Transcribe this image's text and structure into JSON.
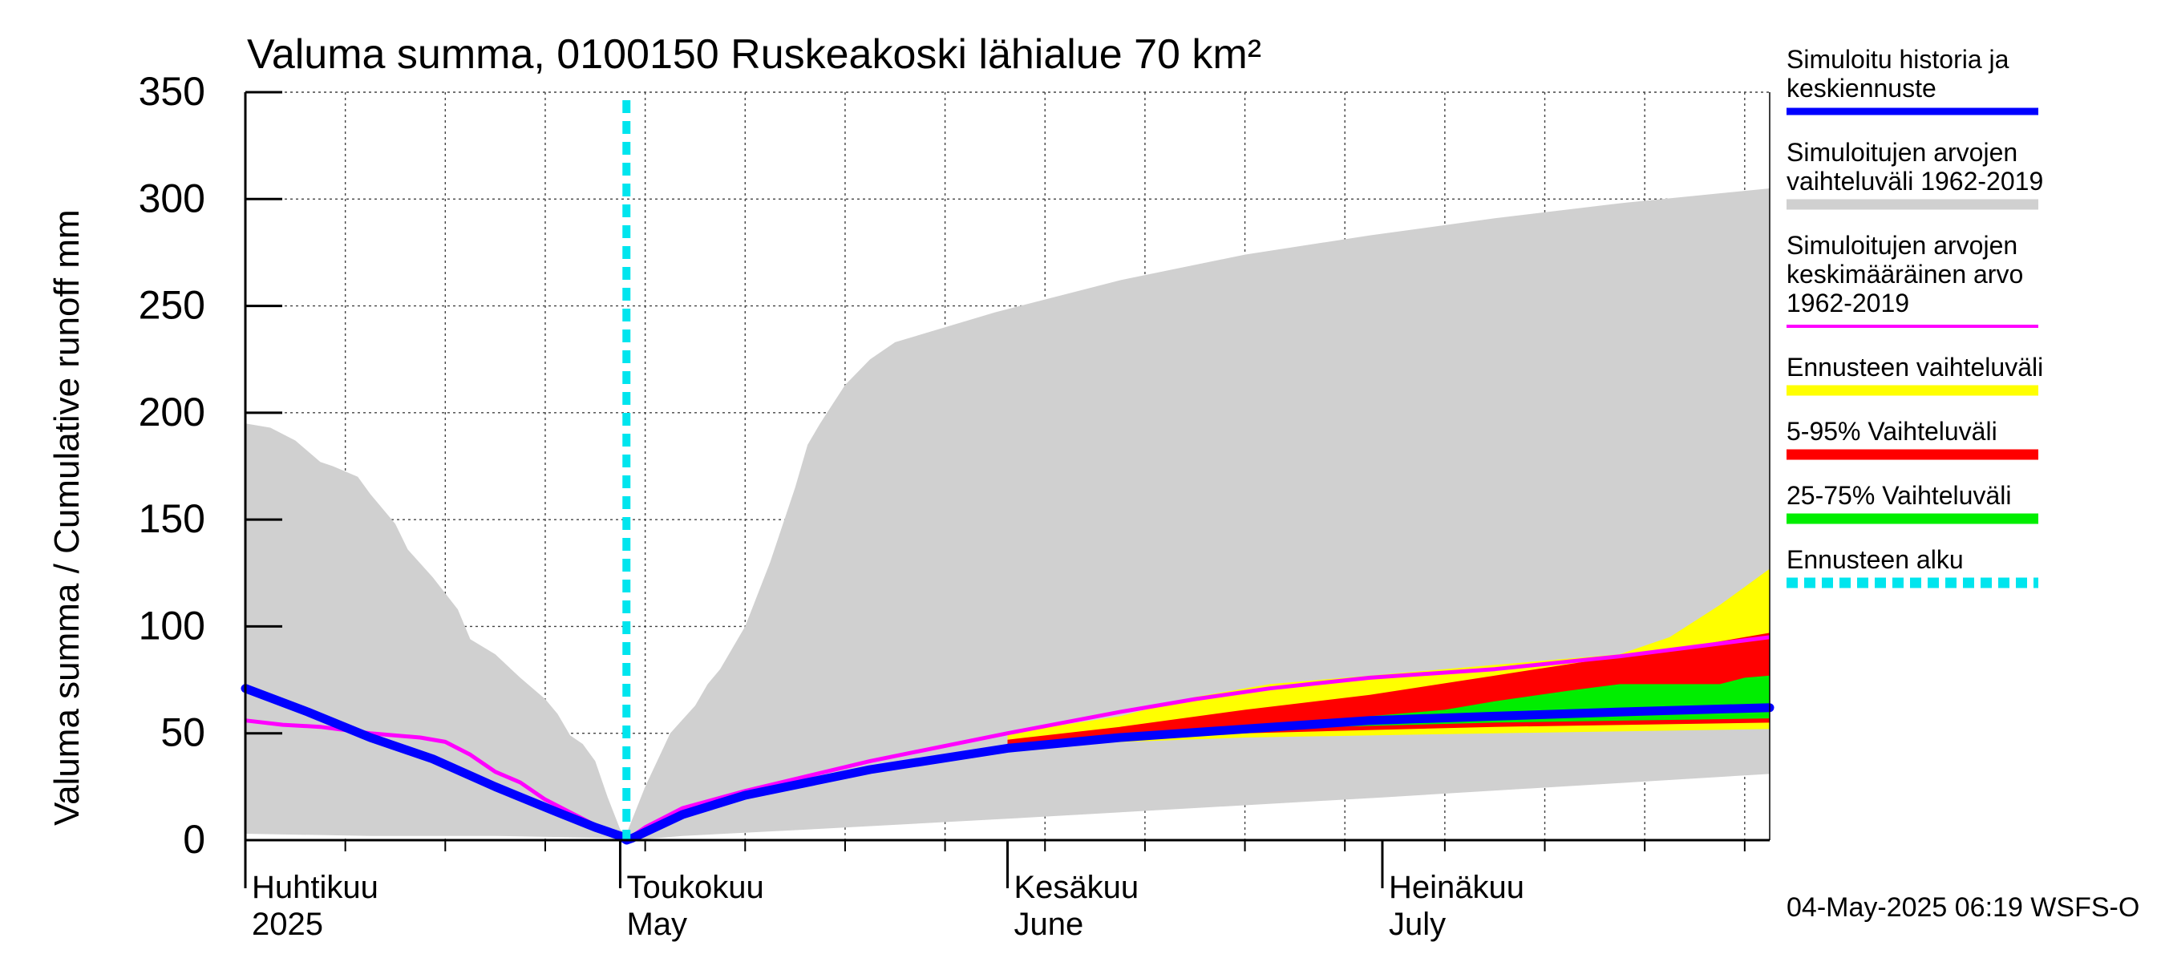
{
  "chart_data": {
    "type": "area",
    "title": "Valuma summa, 0100150 Ruskeakoski lähialue 70 km²",
    "ylabel": "Valuma summa / Cumulative runoff    mm",
    "xlabel": "",
    "ylim": [
      0,
      350
    ],
    "yticks": [
      0,
      50,
      100,
      150,
      200,
      250,
      300,
      350
    ],
    "grid": true,
    "x_unit": "day index from 1 April 2025",
    "xlim": [
      0,
      122
    ],
    "month_labels": [
      {
        "fi": "Huhtikuu",
        "en": "2025",
        "day": 0
      },
      {
        "fi": "Toukokuu",
        "en": "May",
        "day": 30
      },
      {
        "fi": "Kesäkuu",
        "en": "June",
        "day": 61
      },
      {
        "fi": "Heinäkuu",
        "en": "July",
        "day": 91
      }
    ],
    "forecast_start_day": 30.5,
    "timestamp": "04-May-2025 06:19 WSFS-O",
    "legend": [
      {
        "label_lines": [
          "Simuloitu historia ja",
          "keskiennuste"
        ],
        "color": "#0000ff",
        "style": "line"
      },
      {
        "label_lines": [
          "Simuloitujen arvojen",
          "vaihteluväli 1962-2019"
        ],
        "color": "#d0d0d0",
        "style": "thick"
      },
      {
        "label_lines": [
          "Simuloitujen arvojen",
          "keskimääräinen arvo",
          "   1962-2019"
        ],
        "color": "#ff00ff",
        "style": "thin"
      },
      {
        "label_lines": [
          "Ennusteen vaihteluväli"
        ],
        "color": "#ffff00",
        "style": "thick"
      },
      {
        "label_lines": [
          "5-95% Vaihteluväli"
        ],
        "color": "#ff0000",
        "style": "thick"
      },
      {
        "label_lines": [
          "25-75% Vaihteluväli"
        ],
        "color": "#00ee00",
        "style": "thick"
      },
      {
        "label_lines": [
          "Ennusteen alku"
        ],
        "color": "#00e5ee",
        "style": "dashed"
      }
    ],
    "series": [
      {
        "name": "Simuloitujen arvojen vaihteluväli 1962-2019 (upper)",
        "color": "#d0d0d0",
        "x": [
          0,
          2,
          4,
          6,
          7,
          9,
          10,
          12,
          13,
          15,
          17,
          18,
          20,
          22,
          24,
          25,
          26,
          27,
          28,
          29,
          30,
          30.5,
          32,
          34,
          36,
          37,
          38,
          40,
          42,
          44,
          45,
          46,
          48,
          50,
          52,
          60,
          70,
          80,
          90,
          100,
          110,
          122
        ],
        "y": [
          195,
          193,
          187,
          177,
          175,
          170,
          162,
          148,
          136,
          123,
          108,
          94,
          87,
          76,
          66,
          59,
          49,
          45,
          37,
          20,
          5,
          3,
          25,
          50,
          63,
          73,
          80,
          100,
          130,
          165,
          185,
          195,
          213,
          225,
          233,
          247,
          262,
          274,
          283,
          291,
          298,
          305
        ]
      },
      {
        "name": "Simuloitujen arvojen vaihteluväli 1962-2019 (lower)",
        "color": "#d0d0d0",
        "x": [
          0,
          10,
          20,
          29,
          30,
          30.5,
          31,
          35,
          45,
          61,
          91,
          122
        ],
        "y": [
          3,
          2,
          2,
          1,
          0,
          0,
          0,
          2,
          5,
          10,
          20,
          31
        ]
      },
      {
        "name": "Ennusteen vaihteluväli (upper)",
        "color": "#ffff00",
        "x": [
          61,
          70,
          76,
          82,
          90,
          100,
          110,
          114,
          118,
          122
        ],
        "y": [
          50,
          58,
          67,
          73,
          77,
          82,
          87,
          95,
          110,
          127
        ]
      },
      {
        "name": "Ennusteen vaihteluväli (lower)",
        "color": "#ffff00",
        "x": [
          61,
          80,
          100,
          122
        ],
        "y": [
          44,
          48,
          50,
          52
        ]
      },
      {
        "name": "5-95% Vaihteluväli (upper)",
        "color": "#ff0000",
        "x": [
          61,
          70,
          80,
          90,
          100,
          110,
          116,
          122
        ],
        "y": [
          47,
          53,
          61,
          68,
          77,
          86,
          91,
          97
        ]
      },
      {
        "name": "5-95% Vaihteluväli (lower)",
        "color": "#ff0000",
        "x": [
          61,
          80,
          100,
          122
        ],
        "y": [
          44,
          50,
          53,
          55
        ]
      },
      {
        "name": "25-75% Vaihteluväli (upper)",
        "color": "#00ee00",
        "x": [
          80,
          90,
          96,
          100,
          106,
          110,
          118,
          120,
          122
        ],
        "y": [
          53,
          58,
          61,
          65,
          70,
          73,
          73,
          76,
          77
        ]
      },
      {
        "name": "25-75% Vaihteluväli (lower)",
        "color": "#00ee00",
        "x": [
          80,
          100,
          122
        ],
        "y": [
          52,
          55,
          57
        ]
      },
      {
        "name": "Simuloitujen arvojen keskimääräinen arvo 1962-2019",
        "color": "#ff00ff",
        "x": [
          0,
          3,
          6,
          10,
          14,
          16,
          18,
          20,
          22,
          24,
          26,
          28,
          29,
          30,
          30.5,
          32,
          35,
          40,
          50,
          61,
          70,
          76,
          82,
          90,
          100,
          110,
          122
        ],
        "y": [
          56,
          54,
          53,
          50,
          48,
          46,
          40,
          32,
          27,
          19,
          13,
          7,
          4,
          1,
          0,
          6,
          15,
          23,
          37,
          50,
          60,
          66,
          71,
          76,
          80,
          86,
          95
        ]
      },
      {
        "name": "Simuloitu historia ja keskiennuste",
        "color": "#0000ff",
        "x": [
          0,
          5,
          10,
          15,
          20,
          25,
          28,
          30,
          30.5,
          31,
          35,
          40,
          50,
          61,
          70,
          80,
          90,
          100,
          110,
          122
        ],
        "y": [
          71,
          60,
          48,
          38,
          25,
          13,
          6,
          2,
          0,
          1,
          12,
          21,
          33,
          43,
          48,
          52,
          56,
          58,
          60,
          62
        ]
      }
    ]
  }
}
